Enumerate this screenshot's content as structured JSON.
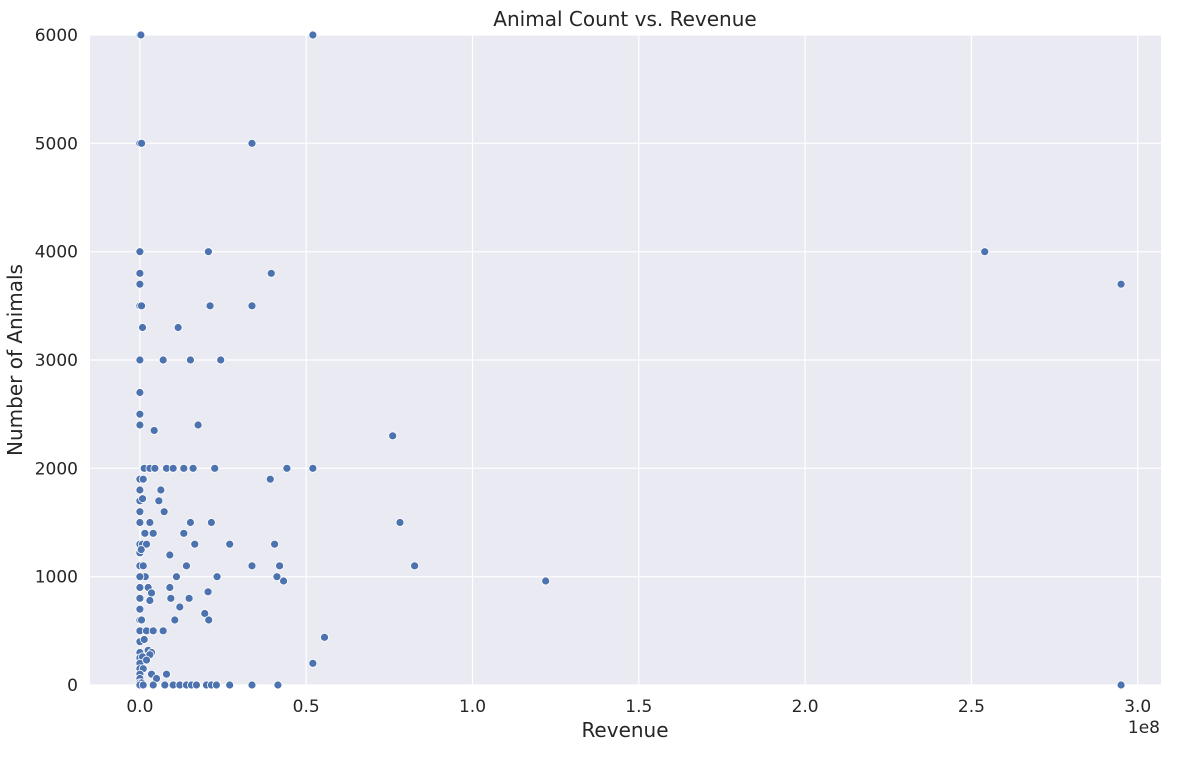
{
  "chart_data": {
    "type": "scatter",
    "title": "Animal Count vs. Revenue",
    "xlabel": "Revenue",
    "ylabel": "Number of Animals",
    "x_offset_label": "1e8",
    "x_scale": 100000000,
    "xlim": [
      -0.15,
      3.07
    ],
    "ylim": [
      0,
      6000
    ],
    "x_ticks": [
      0.0,
      0.5,
      1.0,
      1.5,
      2.0,
      2.5,
      3.0
    ],
    "x_tick_labels": [
      "0.0",
      "0.5",
      "1.0",
      "1.5",
      "2.0",
      "2.5",
      "3.0"
    ],
    "y_ticks": [
      0,
      1000,
      2000,
      3000,
      4000,
      5000,
      6000
    ],
    "y_tick_labels": [
      "0",
      "1000",
      "2000",
      "3000",
      "4000",
      "5000",
      "6000"
    ],
    "grid": true,
    "background_color": "#eaeaf2",
    "grid_color": "#ffffff",
    "marker_color": "#4c72b0",
    "marker_edge_color": "#ffffff",
    "series": [
      {
        "x": [
          0.0,
          0.003,
          0.52,
          0.0,
          0.005,
          0.337,
          0.0,
          0.206,
          2.54,
          0.0,
          0.395,
          0.0,
          2.95,
          0.0,
          0.005,
          0.211,
          0.337,
          0.008,
          0.115,
          0.0,
          0.07,
          0.152,
          0.243,
          0.0,
          0.0,
          0.043,
          0.76,
          0.175,
          0.0,
          0.013,
          0.03,
          0.045,
          0.08,
          0.1,
          0.132,
          0.16,
          0.225,
          0.442,
          0.52,
          0.0,
          0.392,
          0.0,
          0.063,
          0.01,
          0.0,
          0.057,
          0.073,
          0.0,
          0.008,
          0.03,
          0.152,
          0.215,
          0.782,
          0.0,
          0.015,
          0.04,
          0.132,
          0.0,
          0.008,
          0.02,
          0.165,
          0.27,
          0.405,
          0.0,
          0.004,
          0.09,
          0.0,
          0.01,
          0.0,
          0.016,
          0.14,
          0.337,
          0.42,
          0.826,
          0.0,
          0.11,
          0.232,
          0.412,
          1.22,
          0.432,
          0.0,
          0.025,
          0.035,
          0.09,
          0.205,
          0.0,
          0.03,
          0.093,
          0.148,
          0.0,
          0.12,
          0.195,
          0.0,
          0.005,
          0.105,
          0.207,
          0.0,
          0.02,
          0.04,
          0.07,
          0.0,
          0.013,
          0.0,
          0.025,
          0.035,
          0.555,
          0.0,
          0.008,
          0.03,
          0.0,
          0.02,
          0.52,
          0.0,
          0.01,
          0.0,
          0.035,
          0.08,
          0.0,
          0.05,
          0.0,
          0.005,
          0.0,
          0.01,
          0.04,
          0.075,
          0.1,
          0.12,
          0.14,
          0.155,
          0.17,
          0.2,
          0.215,
          0.23,
          0.27,
          0.337,
          0.415,
          2.95
        ],
        "y": [
          6000,
          6000,
          6000,
          5000,
          5000,
          5000,
          4000,
          4000,
          4000,
          3800,
          3800,
          3700,
          3700,
          3500,
          3500,
          3500,
          3500,
          3300,
          3300,
          3000,
          3000,
          3000,
          3000,
          2700,
          2500,
          2350,
          2300,
          2400,
          2400,
          2000,
          2000,
          2000,
          2000,
          2000,
          2000,
          2000,
          2000,
          2000,
          2000,
          1900,
          1900,
          1800,
          1800,
          1900,
          1700,
          1700,
          1600,
          1600,
          1720,
          1500,
          1500,
          1500,
          1500,
          1500,
          1400,
          1400,
          1400,
          1300,
          1300,
          1300,
          1300,
          1300,
          1300,
          1220,
          1250,
          1200,
          1100,
          1100,
          1000,
          1000,
          1100,
          1100,
          1100,
          1100,
          1000,
          1000,
          1000,
          1000,
          960,
          960,
          900,
          900,
          850,
          900,
          860,
          800,
          780,
          800,
          800,
          700,
          720,
          660,
          600,
          600,
          600,
          600,
          500,
          500,
          500,
          500,
          400,
          420,
          300,
          320,
          300,
          440,
          250,
          260,
          280,
          200,
          230,
          200,
          150,
          150,
          100,
          100,
          100,
          60,
          60,
          20,
          20,
          0,
          0,
          0,
          0,
          0,
          0,
          0,
          0,
          0,
          0,
          0,
          0,
          0,
          0,
          0,
          0
        ]
      }
    ]
  }
}
